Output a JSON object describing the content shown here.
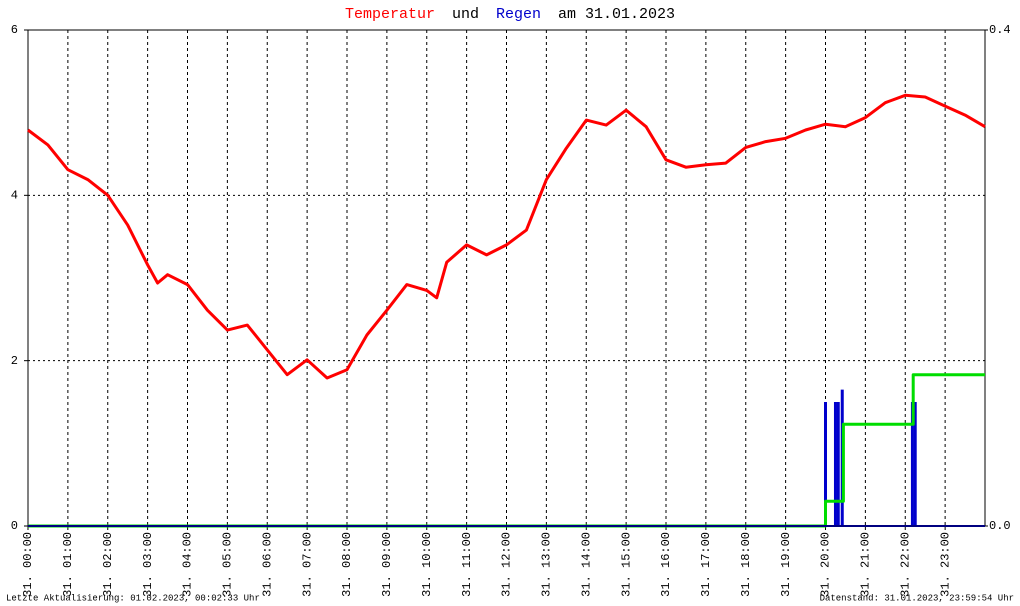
{
  "chart_data": {
    "type": "line",
    "title_parts": [
      "und",
      "am 31.01.2023"
    ],
    "annotations": [
      "Letzte Aktualisierung: 01.02.2023, 00:02:33 Uhr",
      "Datenstand: 31.01.2023, 23:59:54 Uhr"
    ],
    "xlim": [
      0,
      24
    ],
    "xticks": [
      {
        "value": 0,
        "label": "31. 00:00"
      },
      {
        "value": 1,
        "label": "31. 01:00"
      },
      {
        "value": 2,
        "label": "31. 02:00"
      },
      {
        "value": 3,
        "label": "31. 03:00"
      },
      {
        "value": 4,
        "label": "31. 04:00"
      },
      {
        "value": 5,
        "label": "31. 05:00"
      },
      {
        "value": 6,
        "label": "31. 06:00"
      },
      {
        "value": 7,
        "label": "31. 07:00"
      },
      {
        "value": 8,
        "label": "31. 08:00"
      },
      {
        "value": 9,
        "label": "31. 09:00"
      },
      {
        "value": 10,
        "label": "31. 10:00"
      },
      {
        "value": 11,
        "label": "31. 11:00"
      },
      {
        "value": 12,
        "label": "31. 12:00"
      },
      {
        "value": 13,
        "label": "31. 13:00"
      },
      {
        "value": 14,
        "label": "31. 14:00"
      },
      {
        "value": 15,
        "label": "31. 15:00"
      },
      {
        "value": 16,
        "label": "31. 16:00"
      },
      {
        "value": 17,
        "label": "31. 17:00"
      },
      {
        "value": 18,
        "label": "31. 18:00"
      },
      {
        "value": 19,
        "label": "31. 19:00"
      },
      {
        "value": 20,
        "label": "31. 20:00"
      },
      {
        "value": 21,
        "label": "31. 21:00"
      },
      {
        "value": 22,
        "label": "31. 22:00"
      },
      {
        "value": 23,
        "label": "31. 23:00"
      }
    ],
    "ylim": [
      0,
      6
    ],
    "yticks": [
      0,
      2,
      4,
      6
    ],
    "y2lim": [
      0,
      0.4
    ],
    "y2ticks": [
      {
        "value": 0,
        "label": "0.0"
      },
      0.4
    ],
    "grid": true,
    "series": [
      {
        "name": "Temperatur",
        "color": "#ff0000",
        "x": [
          0,
          0.5,
          1,
          1.5,
          2,
          2.5,
          3,
          3.25,
          3.5,
          4,
          4.5,
          5,
          5.5,
          6,
          6.5,
          7,
          7.5,
          8,
          8.5,
          9,
          9.5,
          10,
          10.25,
          10.5,
          11,
          11.5,
          12,
          12.5,
          13,
          13.5,
          14,
          14.5,
          15,
          15.5,
          16,
          16.5,
          17,
          17.5,
          18,
          18.5,
          19,
          19.5,
          20,
          20.5,
          21,
          21.5,
          22,
          22.5,
          23,
          23.5,
          24
        ],
        "values": [
          4.79,
          4.61,
          4.31,
          4.19,
          4.0,
          3.64,
          3.16,
          2.94,
          3.04,
          2.92,
          2.61,
          2.37,
          2.43,
          2.13,
          1.83,
          2.01,
          1.79,
          1.89,
          2.31,
          2.61,
          2.92,
          2.85,
          2.76,
          3.19,
          3.4,
          3.28,
          3.4,
          3.58,
          4.19,
          4.57,
          4.91,
          4.85,
          5.03,
          4.83,
          4.43,
          4.34,
          4.37,
          4.39,
          4.58,
          4.65,
          4.69,
          4.79,
          4.86,
          4.83,
          4.94,
          5.12,
          5.21,
          5.19,
          5.08,
          4.97,
          4.83
        ]
      },
      {
        "name": "Regen",
        "color": "#0000cc",
        "axis": "y2",
        "bars": true,
        "x": [
          20.0,
          20.25,
          20.32,
          20.42,
          22.18,
          22.25
        ],
        "values": [
          0.1,
          0.1,
          0.1,
          0.11,
          0.1,
          0.1
        ]
      },
      {
        "color": "#00dd00",
        "axis": "y2",
        "x": [
          0,
          20.0,
          20.0,
          20.45,
          20.45,
          22.2,
          22.2,
          24
        ],
        "values": [
          0,
          0,
          0.02,
          0.02,
          0.082,
          0.082,
          0.122,
          0.122
        ]
      }
    ]
  }
}
